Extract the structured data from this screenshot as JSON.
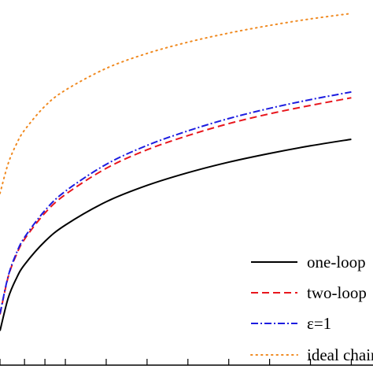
{
  "chart_data": {
    "type": "line",
    "title": "",
    "xlabel": "",
    "ylabel": "",
    "xlim": [
      0.14,
      1.03
    ],
    "ylim": [
      0.0,
      1.0
    ],
    "grid": false,
    "legend_position": "bottom-right",
    "series": [
      {
        "name": "one-loop",
        "color": "#000000",
        "style": "solid",
        "x": [
          0.14,
          0.16,
          0.18,
          0.2,
          0.25,
          0.3,
          0.4,
          0.5,
          0.6,
          0.7,
          0.8,
          0.9,
          1.0
        ],
        "y": [
          0.09,
          0.18,
          0.234,
          0.272,
          0.336,
          0.381,
          0.445,
          0.49,
          0.525,
          0.554,
          0.578,
          0.599,
          0.617
        ]
      },
      {
        "name": "two-loop",
        "color": "#e8161d",
        "style": "dashed",
        "x": [
          0.14,
          0.16,
          0.18,
          0.2,
          0.25,
          0.3,
          0.4,
          0.5,
          0.6,
          0.7,
          0.8,
          0.9,
          1.0
        ],
        "y": [
          0.135,
          0.238,
          0.299,
          0.342,
          0.414,
          0.465,
          0.537,
          0.588,
          0.627,
          0.66,
          0.687,
          0.71,
          0.731
        ]
      },
      {
        "name": "ε=1",
        "color": "#1c1ce0",
        "style": "dashdot",
        "x": [
          0.14,
          0.16,
          0.18,
          0.2,
          0.25,
          0.3,
          0.4,
          0.5,
          0.6,
          0.7,
          0.8,
          0.9,
          1.0
        ],
        "y": [
          0.137,
          0.24,
          0.303,
          0.347,
          0.421,
          0.474,
          0.548,
          0.6,
          0.64,
          0.674,
          0.702,
          0.726,
          0.747
        ]
      },
      {
        "name": "ideal chain",
        "color": "#f08a21",
        "style": "dotted",
        "x": [
          0.14,
          0.16,
          0.18,
          0.2,
          0.25,
          0.3,
          0.4,
          0.5,
          0.6,
          0.7,
          0.8,
          0.9,
          1.0
        ],
        "y": [
          0.468,
          0.55,
          0.603,
          0.642,
          0.708,
          0.752,
          0.812,
          0.853,
          0.884,
          0.909,
          0.93,
          0.948,
          0.963
        ]
      }
    ],
    "x_ticks": [
      0.14,
      0.2,
      0.25,
      0.3,
      0.4,
      0.5,
      0.6,
      0.7,
      0.8,
      0.9,
      1.0
    ]
  }
}
